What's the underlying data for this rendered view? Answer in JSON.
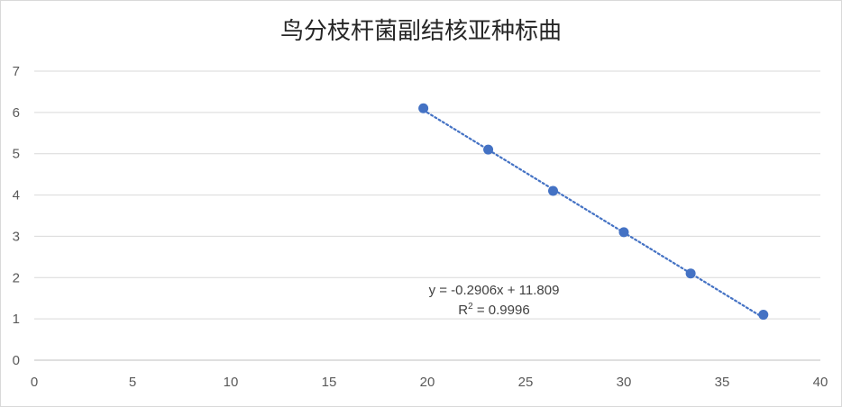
{
  "chart_data": {
    "type": "scatter",
    "title": "鸟分枝杆菌副结核亚种标曲",
    "xlabel": "",
    "ylabel": "",
    "xlim": [
      0,
      40
    ],
    "ylim": [
      0,
      7
    ],
    "x_ticks": [
      "0",
      "5",
      "10",
      "15",
      "20",
      "25",
      "30",
      "35",
      "40"
    ],
    "y_ticks": [
      "0",
      "1",
      "2",
      "3",
      "4",
      "5",
      "6",
      "7"
    ],
    "grid": "horizontal",
    "legend": "none",
    "colors": {
      "marker": "#4472c4",
      "trendline": "#4472c4",
      "grid": "#d9d9d9"
    },
    "series": [
      {
        "x": [
          19.8,
          23.1,
          26.4,
          30.0,
          33.4,
          37.1
        ],
        "y": [
          6.1,
          5.1,
          4.1,
          3.1,
          2.1,
          1.1
        ]
      }
    ],
    "trendline": {
      "type": "linear",
      "slope": -0.2906,
      "intercept": 11.809,
      "x_range": [
        19.8,
        37.1
      ],
      "equation_label": "y = -0.2906x + 11.809",
      "r2_prefix": "R",
      "r2_sup": "2",
      "r2_value": " = 0.9996"
    }
  }
}
